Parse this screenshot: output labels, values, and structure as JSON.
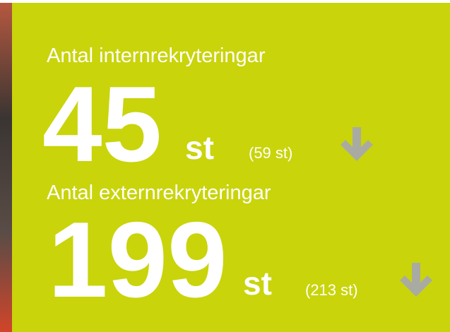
{
  "items": [
    {
      "label": "Antal internrekryteringar",
      "value": "45",
      "unit": "st",
      "previous": "(59 st)"
    },
    {
      "label": "Antal externrekryteringar",
      "value": "199",
      "unit": "st",
      "previous": "(213 st)"
    }
  ]
}
